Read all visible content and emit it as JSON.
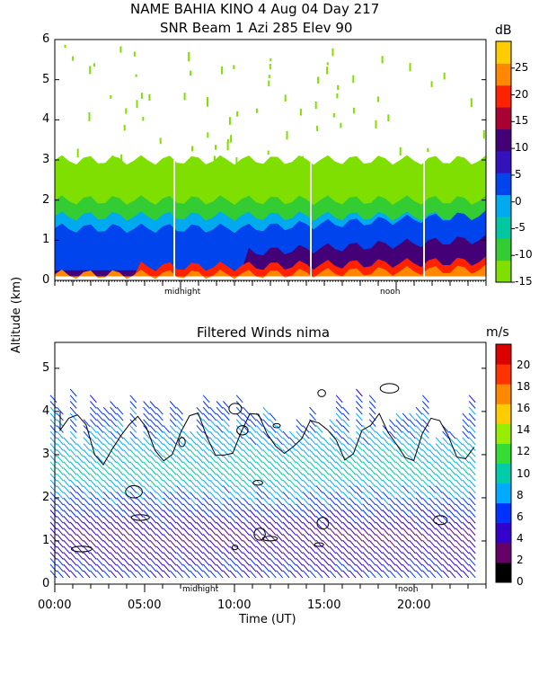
{
  "figure": {
    "title_line1": "NAME BAHIA KINO    4 Aug 04 Day 217",
    "title_line2": "SNR Beam 1 Azi 285 Elev 90",
    "shared_ylabel": "Altitude (km)",
    "xlabel": "Time (UT)"
  },
  "chart_data": [
    {
      "type": "heatmap",
      "title": "SNR Beam 1 Azi 285 Elev 90",
      "ylabel": "Altitude (km)",
      "yticks": [
        "0",
        "1",
        "2",
        "3",
        "4",
        "5",
        "6"
      ],
      "ylim": [
        0,
        6
      ],
      "xlim": [
        0,
        24
      ],
      "x_marker_labels": [
        {
          "label": "midnight",
          "x": 7.0
        },
        {
          "label": "noon",
          "x": 19.0
        }
      ],
      "colorbar": {
        "unit": "dB",
        "ticks": [
          "25",
          "20",
          "15",
          "10",
          "5",
          "0",
          "-5",
          "-10",
          "-15"
        ],
        "range": [
          -15,
          30
        ],
        "colors": [
          "#7fe000",
          "#33cc33",
          "#00c8a0",
          "#00aaee",
          "#0044ee",
          "#3311bb",
          "#440077",
          "#aa0033",
          "#ff2200",
          "#ff8800",
          "#ffcc00"
        ]
      },
      "layers": [
        {
          "name": "low",
          "top_km": 3.0,
          "color": "#7fe000"
        },
        {
          "name": "mid",
          "top_km": 2.0,
          "color": "#33cc33"
        },
        {
          "name": "band",
          "top_km": 1.6,
          "color": "#00aaee"
        },
        {
          "name": "blue",
          "top_km": 1.3,
          "color": "#0044ee"
        },
        {
          "name": "purple",
          "top_km": 0.7,
          "color": "#440077"
        },
        {
          "name": "red",
          "top_km": 0.35,
          "color": "#ff2200"
        },
        {
          "name": "orange",
          "top_km": 0.15,
          "color": "#ff8800"
        }
      ]
    },
    {
      "type": "heatmap",
      "title": "Filtered Winds nima",
      "ylabel": "Altitude (km)",
      "xlabel": "Time (UT)",
      "yticks": [
        "0",
        "1",
        "2",
        "3",
        "4",
        "5"
      ],
      "ylim": [
        0,
        5.6
      ],
      "xlim": [
        0,
        24
      ],
      "xticks": [
        "00:00",
        "05:00",
        "10:00",
        "15:00",
        "20:00"
      ],
      "xtick_values": [
        0,
        5,
        10,
        15,
        20
      ],
      "x_marker_labels": [
        {
          "label": "midnight",
          "x": 8.0
        },
        {
          "label": "noon",
          "x": 20.0
        }
      ],
      "colorbar": {
        "unit": "m/s",
        "ticks": [
          "20",
          "18",
          "16",
          "14",
          "12",
          "10",
          "8",
          "6",
          "4",
          "2",
          "0"
        ],
        "range": [
          0,
          22
        ],
        "colors": [
          "#000000",
          "#660066",
          "#3300cc",
          "#0033ff",
          "#00aaff",
          "#00ccaa",
          "#33dd33",
          "#99ee00",
          "#ffcc00",
          "#ff8800",
          "#ff3300",
          "#dd0000"
        ]
      },
      "wind_speed_profile": [
        {
          "alt_km": 0.3,
          "speed": 5
        },
        {
          "alt_km": 1.0,
          "speed": 3
        },
        {
          "alt_km": 2.0,
          "speed": 7
        },
        {
          "alt_km": 2.5,
          "speed": 10
        },
        {
          "alt_km": 3.5,
          "speed": 7
        },
        {
          "alt_km": 4.5,
          "speed": 5
        }
      ]
    }
  ]
}
